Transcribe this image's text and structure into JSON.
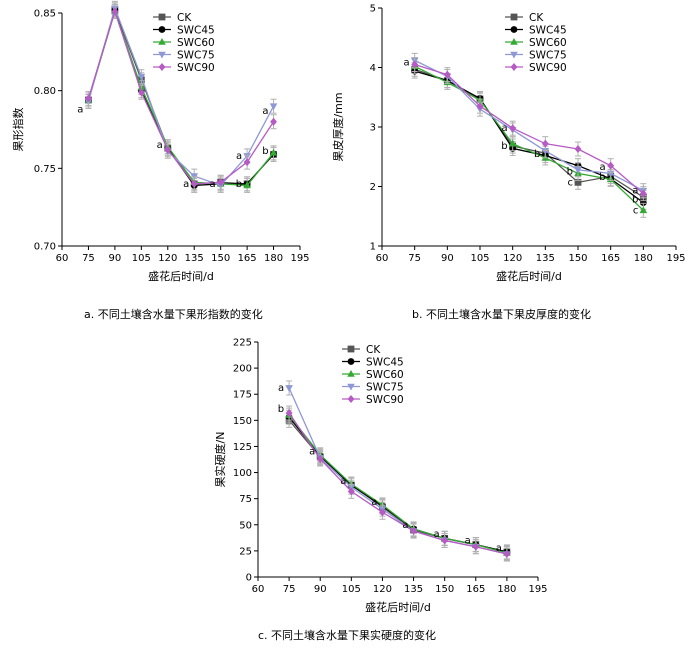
{
  "series_styles": [
    {
      "name": "CK",
      "color": "#555555",
      "marker": "square"
    },
    {
      "name": "SWC45",
      "color": "#000000",
      "marker": "circle"
    },
    {
      "name": "SWC60",
      "color": "#33aa33",
      "marker": "triangle-up"
    },
    {
      "name": "SWC75",
      "color": "#8e98d6",
      "marker": "triangle-down"
    },
    {
      "name": "SWC90",
      "color": "#b65ac4",
      "marker": "diamond"
    }
  ],
  "chart_data": [
    {
      "id": "a",
      "type": "line",
      "caption": "a.  不同土壤含水量下果形指数的变化",
      "xlabel": "盛花后时间/d",
      "ylabel": "果形指数",
      "xlim": [
        60,
        195
      ],
      "ylim": [
        0.7,
        0.85
      ],
      "xticks": [
        60,
        75,
        90,
        105,
        120,
        135,
        150,
        165,
        180,
        195
      ],
      "yticks": [
        0.7,
        0.75,
        0.8,
        0.85
      ],
      "ytick_labels": [
        "0.70",
        "0.75",
        "0.80",
        "0.85"
      ],
      "x": [
        75,
        90,
        105,
        120,
        135,
        150,
        165,
        180
      ],
      "legend": {
        "position": "top-right",
        "entries": [
          "CK",
          "SWC45",
          "SWC60",
          "SWC75",
          "SWC90"
        ]
      },
      "series": [
        {
          "name": "CK",
          "values": [
            0.794,
            0.852,
            0.807,
            0.763,
            0.74,
            0.741,
            0.74,
            0.759
          ]
        },
        {
          "name": "SWC45",
          "values": [
            0.794,
            0.852,
            0.8,
            0.763,
            0.739,
            0.74,
            0.74,
            0.759
          ]
        },
        {
          "name": "SWC60",
          "values": [
            0.794,
            0.851,
            0.802,
            0.764,
            0.741,
            0.74,
            0.739,
            0.76
          ]
        },
        {
          "name": "SWC75",
          "values": [
            0.793,
            0.853,
            0.809,
            0.761,
            0.745,
            0.739,
            0.758,
            0.79
          ]
        },
        {
          "name": "SWC90",
          "values": [
            0.795,
            0.851,
            0.799,
            0.762,
            0.74,
            0.741,
            0.754,
            0.78
          ]
        }
      ],
      "annotations": [
        {
          "x": 75,
          "y": 0.788,
          "text": "a"
        },
        {
          "x": 120,
          "y": 0.765,
          "text": "a"
        },
        {
          "x": 135,
          "y": 0.74,
          "text": "a"
        },
        {
          "x": 150,
          "y": 0.74,
          "text": "a"
        },
        {
          "x": 165,
          "y": 0.758,
          "text": "a"
        },
        {
          "x": 165,
          "y": 0.74,
          "text": "b"
        },
        {
          "x": 180,
          "y": 0.787,
          "text": "a"
        },
        {
          "x": 180,
          "y": 0.761,
          "text": "b"
        }
      ]
    },
    {
      "id": "b",
      "type": "line",
      "caption": "b.  不同土壤含水量下果皮厚度的变化",
      "xlabel": "盛花后时间/d",
      "ylabel": "果皮厚度/mm",
      "xlim": [
        60,
        195
      ],
      "ylim": [
        1,
        5
      ],
      "xticks": [
        60,
        75,
        90,
        105,
        120,
        135,
        150,
        165,
        180,
        195
      ],
      "yticks": [
        1,
        2,
        3,
        4,
        5
      ],
      "ytick_labels": [
        "1",
        "2",
        "3",
        "4",
        "5"
      ],
      "x": [
        75,
        90,
        105,
        120,
        135,
        150,
        165,
        180
      ],
      "legend": {
        "position": "top-right",
        "entries": [
          "CK",
          "SWC45",
          "SWC60",
          "SWC75",
          "SWC90"
        ]
      },
      "series": [
        {
          "name": "CK",
          "values": [
            3.97,
            3.78,
            3.47,
            2.68,
            2.56,
            2.07,
            2.17,
            1.82
          ]
        },
        {
          "name": "SWC45",
          "values": [
            3.94,
            3.78,
            3.48,
            2.64,
            2.52,
            2.35,
            2.13,
            1.73
          ]
        },
        {
          "name": "SWC60",
          "values": [
            4.02,
            3.75,
            3.45,
            2.72,
            2.48,
            2.22,
            2.12,
            1.6
          ]
        },
        {
          "name": "SWC75",
          "values": [
            4.12,
            3.85,
            3.3,
            2.95,
            2.6,
            2.28,
            2.22,
            1.93
          ]
        },
        {
          "name": "SWC90",
          "values": [
            4.05,
            3.88,
            3.35,
            2.98,
            2.72,
            2.63,
            2.35,
            1.88
          ]
        }
      ],
      "annotations": [
        {
          "x": 75,
          "y": 4.08,
          "text": "a"
        },
        {
          "x": 120,
          "y": 2.98,
          "text": "a"
        },
        {
          "x": 120,
          "y": 2.68,
          "text": "b"
        },
        {
          "x": 135,
          "y": 2.55,
          "text": "b"
        },
        {
          "x": 150,
          "y": 2.25,
          "text": "b"
        },
        {
          "x": 150,
          "y": 2.07,
          "text": "c"
        },
        {
          "x": 165,
          "y": 2.33,
          "text": "a"
        },
        {
          "x": 165,
          "y": 2.16,
          "text": "b"
        },
        {
          "x": 180,
          "y": 1.93,
          "text": "a"
        },
        {
          "x": 180,
          "y": 1.78,
          "text": "b"
        },
        {
          "x": 180,
          "y": 1.6,
          "text": "c"
        }
      ]
    },
    {
      "id": "c",
      "type": "line",
      "caption": "c.  不同土壤含水量下果实硬度的变化",
      "xlabel": "盛花后时间/d",
      "ylabel": "果实硬度/N",
      "xlim": [
        60,
        195
      ],
      "ylim": [
        0,
        225
      ],
      "xticks": [
        60,
        75,
        90,
        105,
        120,
        135,
        150,
        165,
        180,
        195
      ],
      "yticks": [
        0,
        25,
        50,
        75,
        100,
        125,
        150,
        175,
        200,
        225
      ],
      "ytick_labels": [
        "0",
        "25",
        "50",
        "75",
        "100",
        "125",
        "150",
        "175",
        "200",
        "225"
      ],
      "x": [
        75,
        90,
        105,
        120,
        135,
        150,
        165,
        180
      ],
      "legend": {
        "position": "top-left",
        "entries": [
          "CK",
          "SWC45",
          "SWC60",
          "SWC75",
          "SWC90"
        ]
      },
      "series": [
        {
          "name": "CK",
          "values": [
            150,
            115,
            88,
            67,
            45,
            37,
            31,
            24
          ]
        },
        {
          "name": "SWC45",
          "values": [
            153,
            116,
            88,
            68,
            46,
            37,
            31,
            24
          ]
        },
        {
          "name": "SWC60",
          "values": [
            155,
            117,
            89,
            69,
            46,
            37,
            31,
            23
          ]
        },
        {
          "name": "SWC75",
          "values": [
            181,
            114,
            86,
            65,
            44,
            35,
            29,
            22
          ]
        },
        {
          "name": "SWC90",
          "values": [
            157,
            113,
            82,
            62,
            44,
            35,
            29,
            22
          ]
        }
      ],
      "annotations": [
        {
          "x": 75,
          "y": 181,
          "text": "a"
        },
        {
          "x": 75,
          "y": 161,
          "text": "b"
        },
        {
          "x": 90,
          "y": 120,
          "text": "a"
        },
        {
          "x": 105,
          "y": 92,
          "text": "a"
        },
        {
          "x": 120,
          "y": 72,
          "text": "a"
        },
        {
          "x": 135,
          "y": 50,
          "text": "a"
        },
        {
          "x": 150,
          "y": 41,
          "text": "a"
        },
        {
          "x": 165,
          "y": 35,
          "text": "a"
        },
        {
          "x": 180,
          "y": 28,
          "text": "a"
        }
      ]
    }
  ]
}
